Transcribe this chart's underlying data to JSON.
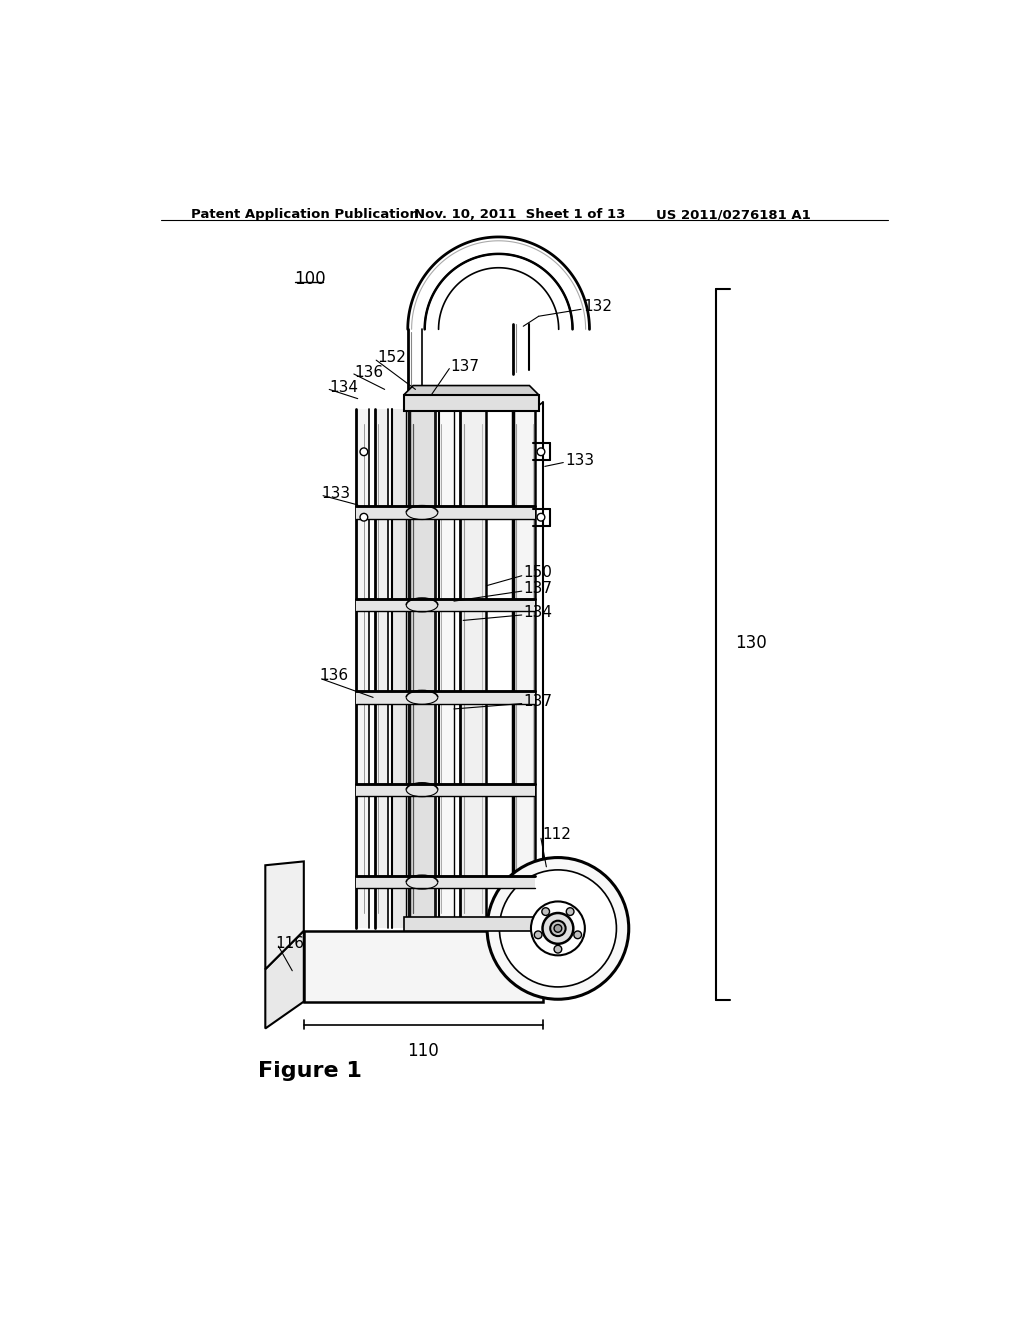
{
  "bg_color": "#ffffff",
  "lc": "#000000",
  "header_left": "Patent Application Publication",
  "header_mid": "Nov. 10, 2011  Sheet 1 of 13",
  "header_right": "US 2011/0276181 A1",
  "figure_label": "Figure 1",
  "ref_100": "100",
  "ref_110": "110",
  "ref_112": "112",
  "ref_116": "116",
  "ref_130": "130",
  "ref_132": "132",
  "ref_133_right": "133",
  "ref_133_left": "133",
  "ref_134_top": "134",
  "ref_134_mid": "134",
  "ref_136_top": "136",
  "ref_136_low": "136",
  "ref_137_top": "137",
  "ref_137_mid": "137",
  "ref_137_low": "137",
  "ref_150": "150",
  "ref_152": "152"
}
